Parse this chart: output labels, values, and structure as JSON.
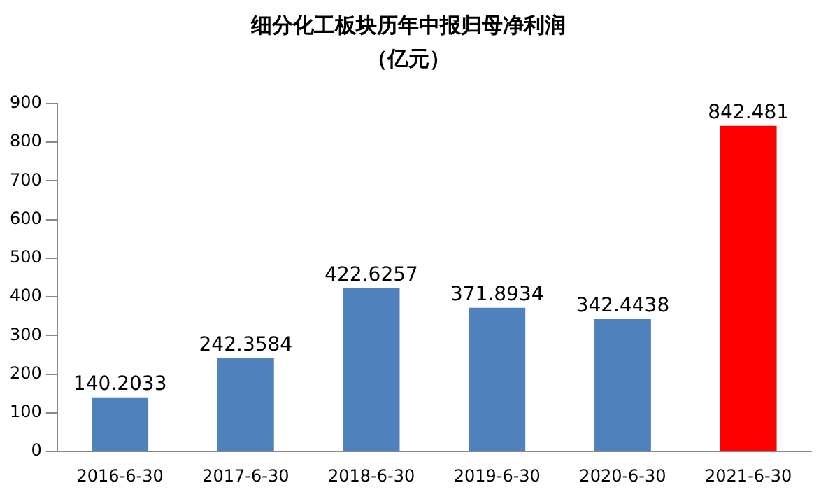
{
  "chart_data": {
    "type": "bar",
    "title": "细分化工板块历年中报归母净利润",
    "subtitle": "（亿元）",
    "categories": [
      "2016-6-30",
      "2017-6-30",
      "2018-6-30",
      "2019-6-30",
      "2020-6-30",
      "2021-6-30"
    ],
    "values": [
      140.2033,
      242.3584,
      422.6257,
      371.8934,
      342.4438,
      842.481
    ],
    "colors": [
      "#4f81bd",
      "#4f81bd",
      "#4f81bd",
      "#4f81bd",
      "#4f81bd",
      "#ff0000"
    ],
    "ylim": [
      0,
      900
    ],
    "yticks": [
      0,
      100,
      200,
      300,
      400,
      500,
      600,
      700,
      800,
      900
    ],
    "grid": false,
    "legend": false,
    "data_labels": true
  }
}
